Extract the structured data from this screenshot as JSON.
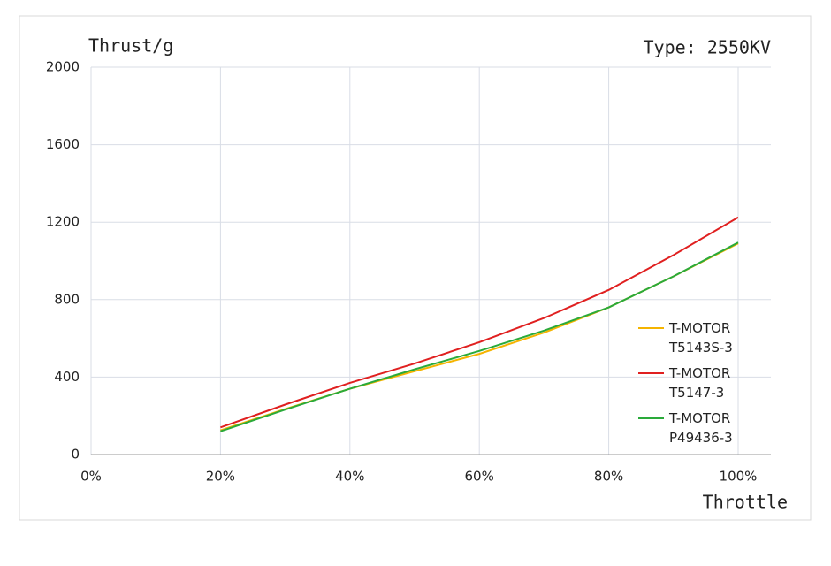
{
  "chart_data": {
    "type": "line",
    "title": "Thrust/g",
    "subtitle": "Type: 2550KV",
    "x_label": "Throttle",
    "x": [
      20,
      30,
      40,
      50,
      60,
      70,
      80,
      90,
      100
    ],
    "series": [
      {
        "name": "T-MOTOR T5143S-3",
        "color": "#f5b400",
        "values": [
          125,
          235,
          340,
          430,
          520,
          630,
          760,
          920,
          1090
        ]
      },
      {
        "name": "T-MOTOR T5147-3",
        "color": "#e02020",
        "values": [
          140,
          258,
          370,
          470,
          580,
          705,
          850,
          1030,
          1225
        ]
      },
      {
        "name": "T-MOTOR P49436-3",
        "color": "#2aaa3a",
        "values": [
          120,
          232,
          340,
          440,
          535,
          640,
          760,
          920,
          1095
        ]
      }
    ],
    "xlim": [
      0,
      100
    ],
    "xticks": [
      {
        "value": 0,
        "label": "0%"
      },
      {
        "value": 20,
        "label": "20%"
      },
      {
        "value": 40,
        "label": "40%"
      },
      {
        "value": 60,
        "label": "60%"
      },
      {
        "value": 80,
        "label": "80%"
      },
      {
        "value": 100,
        "label": "100%"
      }
    ],
    "ylim": [
      0,
      2000
    ],
    "yticks": [
      0,
      400,
      800,
      1200,
      1600,
      2000
    ],
    "grid": true
  }
}
